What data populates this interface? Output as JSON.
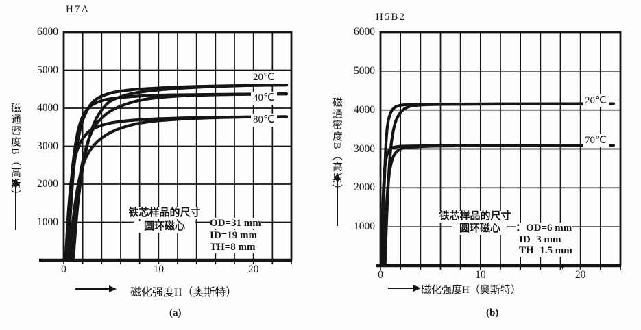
{
  "page": {
    "background": "#fffefd",
    "ink": "#151515"
  },
  "chart_data": [
    {
      "type": "line",
      "title": "H7A",
      "caption": "(a)",
      "xlabel": "磁化强度H（奥斯特）",
      "ylabel": "磁通密度B（高斯）",
      "xlim": [
        0,
        24
      ],
      "ylim": [
        0,
        6000
      ],
      "x_grid_step": 2,
      "y_grid_step": 500,
      "grid": true,
      "legend_position": "right-inside",
      "x_ticks": [
        {
          "value": 0,
          "label": "0"
        },
        {
          "value": 10,
          "label": "10"
        },
        {
          "value": 20,
          "label": "20"
        }
      ],
      "y_ticks": [
        {
          "value": 6000,
          "label": "6000"
        },
        {
          "value": 5000,
          "label": "5000"
        },
        {
          "value": 4000,
          "label": "4000"
        },
        {
          "value": 3000,
          "label": "3000"
        },
        {
          "value": 2000,
          "label": "2000"
        },
        {
          "value": 1000,
          "label": "1000"
        }
      ],
      "curve_labels": [
        "20℃",
        "40℃",
        "80℃"
      ],
      "annotation": {
        "line1": "铁芯样品的尺寸",
        "line2": "圆环磁心",
        "dims": [
          "OD=31 mm",
          "ID=19 mm",
          "TH=8 mm"
        ]
      },
      "series": [
        {
          "name": "20℃",
          "points": [
            [
              0.4,
              0
            ],
            [
              0.7,
              1200
            ],
            [
              1.1,
              2500
            ],
            [
              1.8,
              3500
            ],
            [
              2.6,
              4000
            ],
            [
              3.5,
              4250
            ],
            [
              5,
              4400
            ],
            [
              7,
              4480
            ],
            [
              10,
              4530
            ],
            [
              14,
              4570
            ],
            [
              20,
              4600
            ],
            [
              23.5,
              4610
            ]
          ]
        },
        {
          "name": "20℃",
          "points": [
            [
              1.0,
              0
            ],
            [
              1.5,
              1500
            ],
            [
              2.2,
              2700
            ],
            [
              3.2,
              3600
            ],
            [
              4.5,
              4100
            ],
            [
              6,
              4300
            ],
            [
              8,
              4420
            ],
            [
              11,
              4500
            ],
            [
              15,
              4560
            ],
            [
              20,
              4600
            ],
            [
              23.5,
              4610
            ]
          ]
        },
        {
          "name": "40℃",
          "points": [
            [
              0.3,
              0
            ],
            [
              0.6,
              1400
            ],
            [
              1.0,
              2600
            ],
            [
              1.6,
              3500
            ],
            [
              2.4,
              3950
            ],
            [
              3.5,
              4150
            ],
            [
              5,
              4250
            ],
            [
              8,
              4320
            ],
            [
              12,
              4350
            ],
            [
              20,
              4370
            ],
            [
              23.5,
              4375
            ]
          ]
        },
        {
          "name": "40℃",
          "points": [
            [
              0.8,
              0
            ],
            [
              1.3,
              1400
            ],
            [
              2.0,
              2600
            ],
            [
              3.0,
              3400
            ],
            [
              4.5,
              3850
            ],
            [
              6.5,
              4100
            ],
            [
              9,
              4250
            ],
            [
              13,
              4330
            ],
            [
              20,
              4370
            ],
            [
              23.5,
              4375
            ]
          ]
        },
        {
          "name": "80℃",
          "points": [
            [
              0.2,
              0
            ],
            [
              0.5,
              1300
            ],
            [
              0.9,
              2300
            ],
            [
              1.5,
              2950
            ],
            [
              2.5,
              3350
            ],
            [
              4,
              3550
            ],
            [
              6,
              3650
            ],
            [
              9,
              3710
            ],
            [
              14,
              3750
            ],
            [
              20,
              3770
            ],
            [
              23.5,
              3775
            ]
          ]
        },
        {
          "name": "80℃",
          "points": [
            [
              0.6,
              0
            ],
            [
              1.1,
              1300
            ],
            [
              1.8,
              2300
            ],
            [
              2.8,
              2900
            ],
            [
              4.5,
              3300
            ],
            [
              7,
              3550
            ],
            [
              10,
              3670
            ],
            [
              15,
              3740
            ],
            [
              20,
              3770
            ],
            [
              23.5,
              3775
            ]
          ]
        }
      ]
    },
    {
      "type": "line",
      "title": "H5B2",
      "caption": "(b)",
      "xlabel": "磁化强度H（奥斯特）",
      "ylabel": "磁通密度B（高斯）",
      "xlim": [
        0,
        24
      ],
      "ylim": [
        0,
        6000
      ],
      "x_grid_step": 2,
      "y_grid_step": 500,
      "grid": true,
      "legend_position": "right-inside",
      "stray_mark": "*",
      "x_ticks": [
        {
          "value": 0,
          "label": "0"
        },
        {
          "value": 10,
          "label": "10"
        },
        {
          "value": 20,
          "label": "20"
        }
      ],
      "y_ticks": [
        {
          "value": 6000,
          "label": "6000"
        },
        {
          "value": 5000,
          "label": "5000"
        },
        {
          "value": 4000,
          "label": "4000"
        },
        {
          "value": 3000,
          "label": "3000"
        },
        {
          "value": 2000,
          "label": "2000"
        },
        {
          "value": 1000,
          "label": "1000"
        }
      ],
      "curve_labels": [
        "20℃",
        "70℃"
      ],
      "annotation": {
        "line1": "铁芯样品的尺寸",
        "line2": "圆环磁心",
        "dims": [
          "：OD=6 mm",
          "ID=3 mm",
          "TH=1.5 mm"
        ]
      },
      "series": [
        {
          "name": "20℃",
          "points": [
            [
              0.15,
              0
            ],
            [
              0.3,
              1500
            ],
            [
              0.5,
              2900
            ],
            [
              0.7,
              3600
            ],
            [
              1.0,
              3920
            ],
            [
              1.4,
              4060
            ],
            [
              2.0,
              4120
            ],
            [
              3,
              4140
            ],
            [
              6,
              4150
            ],
            [
              12,
              4155
            ],
            [
              23.3,
              4160
            ]
          ]
        },
        {
          "name": "20℃",
          "points": [
            [
              0.45,
              0
            ],
            [
              0.65,
              1400
            ],
            [
              0.95,
              2800
            ],
            [
              1.35,
              3550
            ],
            [
              1.9,
              3900
            ],
            [
              2.6,
              4060
            ],
            [
              3.6,
              4120
            ],
            [
              6,
              4145
            ],
            [
              12,
              4155
            ],
            [
              23.3,
              4160
            ]
          ]
        },
        {
          "name": "70℃",
          "points": [
            [
              0.1,
              0
            ],
            [
              0.22,
              1400
            ],
            [
              0.38,
              2350
            ],
            [
              0.6,
              2800
            ],
            [
              0.95,
              2990
            ],
            [
              1.5,
              3050
            ],
            [
              2.5,
              3070
            ],
            [
              6,
              3080
            ],
            [
              12,
              3085
            ],
            [
              23.3,
              3090
            ]
          ]
        },
        {
          "name": "70℃",
          "points": [
            [
              0.35,
              0
            ],
            [
              0.55,
              1300
            ],
            [
              0.85,
              2300
            ],
            [
              1.25,
              2780
            ],
            [
              1.9,
              2980
            ],
            [
              2.8,
              3040
            ],
            [
              4.5,
              3065
            ],
            [
              8,
              3080
            ],
            [
              23.3,
              3090
            ]
          ]
        }
      ]
    }
  ]
}
